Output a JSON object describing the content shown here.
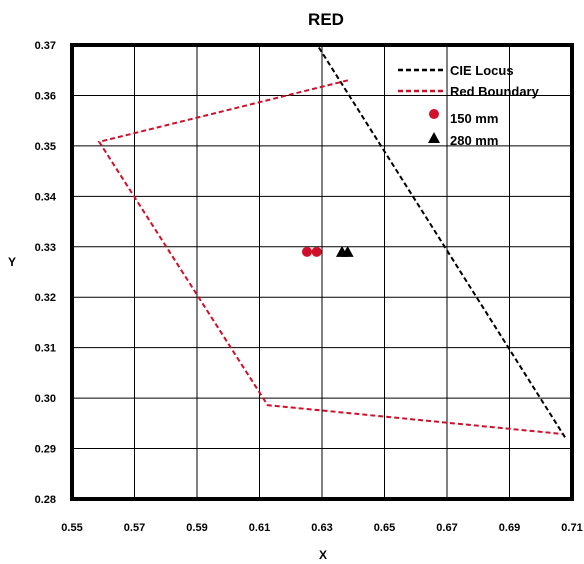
{
  "chart_data": {
    "type": "scatter",
    "title": "RED",
    "xlabel": "X",
    "ylabel": "Y",
    "xlim": [
      0.55,
      0.71
    ],
    "ylim": [
      0.28,
      0.37
    ],
    "xticks": [
      "0.55",
      "0.57",
      "0.59",
      "0.61",
      "0.63",
      "0.65",
      "0.67",
      "0.69",
      "0.71"
    ],
    "yticks": [
      "0.37",
      "0.36",
      "0.35",
      "0.34",
      "0.33",
      "0.32",
      "0.31",
      "0.30",
      "0.29",
      "0.28"
    ],
    "grid": true,
    "legend_position": "top-right",
    "series": [
      {
        "name": "CIE Locus",
        "kind": "dashed-line",
        "color": "#000000",
        "points": [
          [
            0.629,
            0.3695
          ],
          [
            0.7078,
            0.2922
          ]
        ]
      },
      {
        "name": "Red Boundary",
        "kind": "dashed-line",
        "color": "#d0102a",
        "points": [
          [
            0.6383,
            0.363
          ],
          [
            0.5587,
            0.3508
          ],
          [
            0.6126,
            0.2986
          ],
          [
            0.7068,
            0.2929
          ]
        ]
      },
      {
        "name": "150 mm",
        "kind": "circle",
        "color": "#d0102a",
        "points": [
          [
            0.6252,
            0.329
          ],
          [
            0.6283,
            0.329
          ]
        ]
      },
      {
        "name": "280 mm",
        "kind": "triangle",
        "color": "#000000",
        "points": [
          [
            0.6364,
            0.329
          ],
          [
            0.6382,
            0.329
          ]
        ]
      }
    ]
  }
}
